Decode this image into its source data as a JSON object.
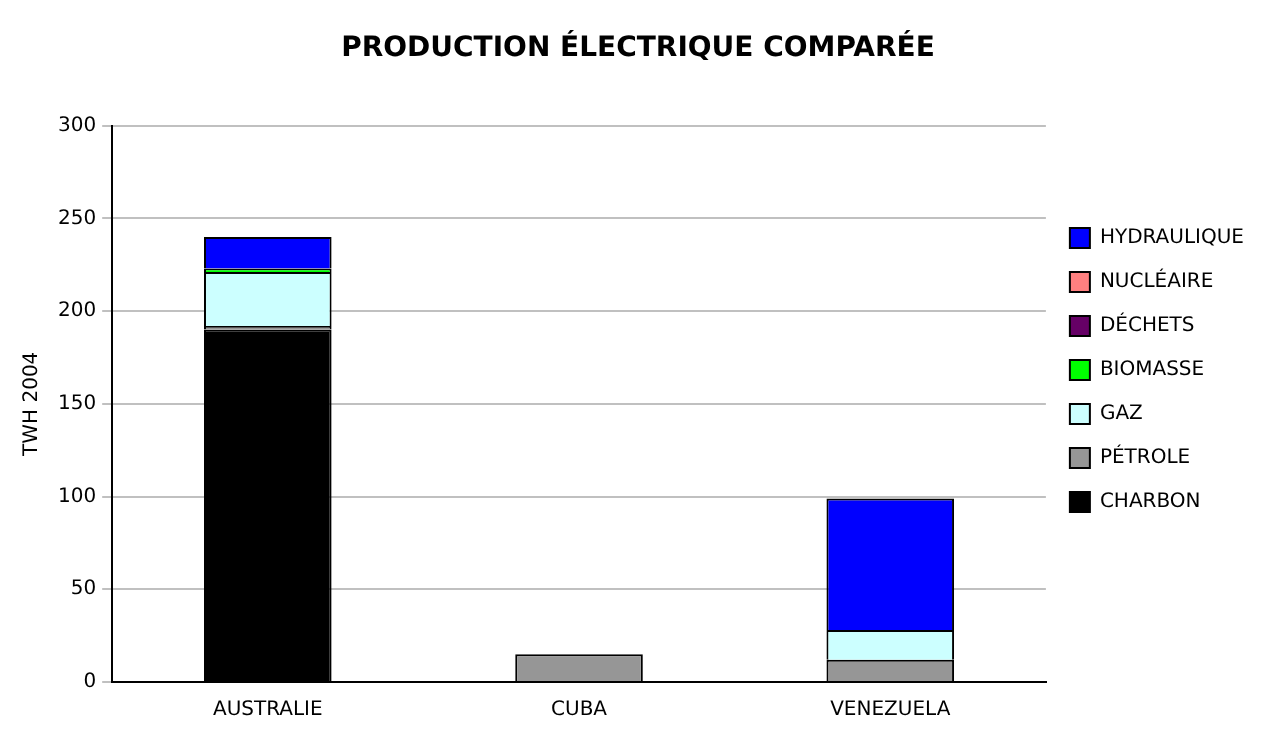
{
  "chart_data": {
    "type": "bar",
    "title": "PRODUCTION ÉLECTRIQUE COMPARÉE",
    "ylabel": "TWH 2004",
    "categories": [
      "AUSTRALIE",
      "CUBA",
      "VENEZUELA"
    ],
    "stacked": true,
    "series": [
      {
        "name": "CHARBON",
        "color": "#000000",
        "values": [
          190,
          0,
          0
        ]
      },
      {
        "name": "PÉTROLE",
        "color": "#969696",
        "values": [
          2,
          15,
          12
        ]
      },
      {
        "name": "GAZ",
        "color": "#ccffff",
        "values": [
          29,
          0,
          16
        ]
      },
      {
        "name": "BIOMASSE",
        "color": "#00ff00",
        "values": [
          2,
          0,
          0
        ]
      },
      {
        "name": "DÉCHETS",
        "color": "#660066",
        "values": [
          0,
          0,
          0
        ]
      },
      {
        "name": "NUCLÉAIRE",
        "color": "#ff8080",
        "values": [
          0,
          0,
          0
        ]
      },
      {
        "name": "HYDRAULIQUE",
        "color": "#0000ff",
        "values": [
          17,
          0,
          71
        ]
      }
    ],
    "ylim": [
      0,
      300
    ],
    "yticks": [
      0,
      50,
      100,
      150,
      200,
      250,
      300
    ],
    "grid": "y",
    "legend": "right"
  }
}
